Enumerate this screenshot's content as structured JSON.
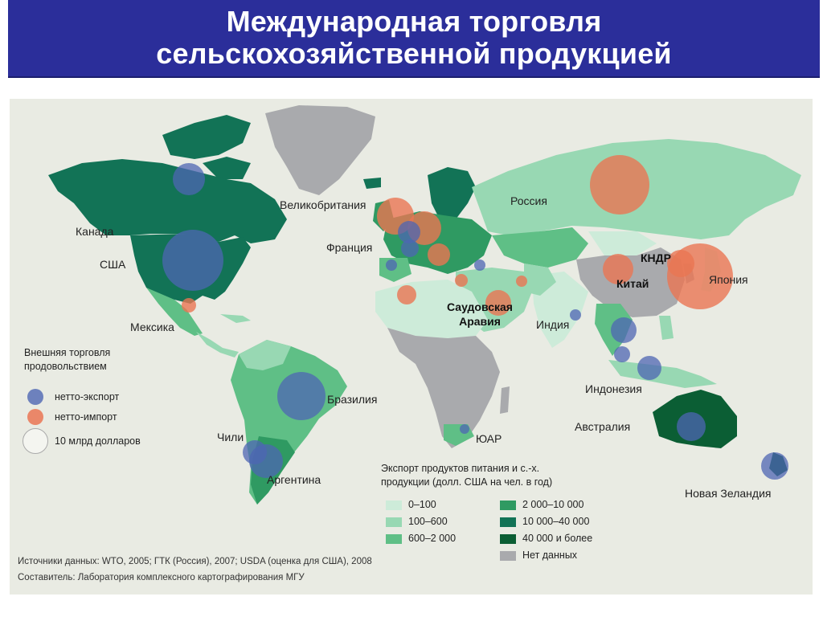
{
  "title": {
    "line1": "Международная торговля",
    "line2": "сельскохозяйственной продукцией"
  },
  "map": {
    "labels": {
      "canada": "Канада",
      "usa": "США",
      "mexico": "Мексика",
      "brazil": "Бразилия",
      "chile": "Чили",
      "argentina": "Аргентина",
      "uk": "Великобритания",
      "france": "Франция",
      "russia": "Россия",
      "dprk": "КНДР",
      "china": "Китай",
      "japan": "Япония",
      "saudi": "Саудовская Аравия",
      "india": "Индия",
      "indonesia": "Индонезия",
      "australia": "Австралия",
      "south_africa": "ЮАР",
      "new_zealand": "Новая Зеландия"
    },
    "colors": {
      "ocean": "#e9ebe3",
      "no_data": "#a9aaad",
      "net_export": "#4e66b3",
      "net_import": "#ea7653"
    }
  },
  "legend_trade": {
    "title": "Внешняя торговля продовольствием",
    "net_export": "нетто-экспорт",
    "net_import": "нетто-импорт",
    "scale": "10 млрд долларов"
  },
  "legend_export": {
    "title": "Экспорт продуктов питания и с.-х. продукции (долл. США на чел. в год)",
    "classes": [
      {
        "label": "0–100",
        "color": "#cdebd9"
      },
      {
        "label": "100–600",
        "color": "#98d8b3"
      },
      {
        "label": "600–2 000",
        "color": "#5fbf86"
      },
      {
        "label": "2 000–10 000",
        "color": "#2f9a62"
      },
      {
        "label": "10 000–40 000",
        "color": "#127356"
      },
      {
        "label": "40 000 и более",
        "color": "#0b5e34"
      },
      {
        "label": "Нет данных",
        "color": "#a9aaad"
      }
    ]
  },
  "sources": {
    "line1": "Источники данных: WTO, 2005; ГТК (Россия), 2007; USDA (оценка для США), 2008",
    "line2": "Составитель: Лаборатория комплексного картографирования МГУ"
  }
}
